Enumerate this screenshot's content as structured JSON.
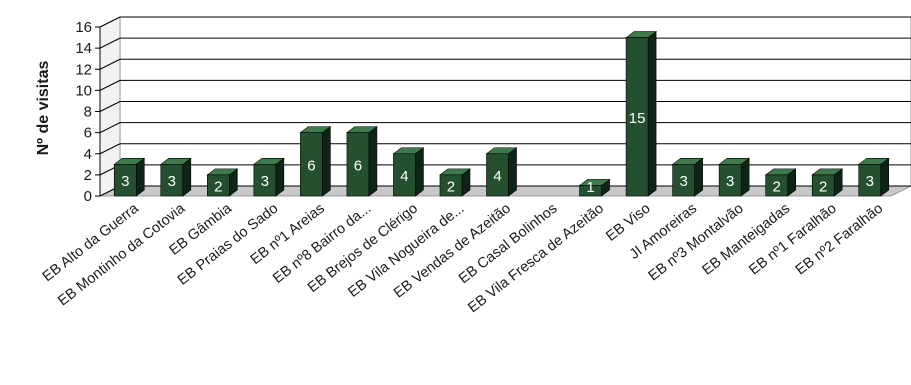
{
  "chart_data": {
    "type": "bar",
    "ylabel": "Nº de visitas",
    "ylim": [
      0,
      16
    ],
    "ytick_step": 2,
    "grid": true,
    "bar_color": "#1c3d27",
    "bar_face_color": "#25502f",
    "bar_side_color": "#0f2416",
    "bar_top_color": "#3f7a4d",
    "wall_color": "#ffffff",
    "floor_color": "#c8c8c8",
    "categories": [
      "EB Alto da Guerra",
      "EB Montinho da Cotovia",
      "EB Gâmbia",
      "EB Praias do Sado",
      "EB nº1 Areias",
      "EB nº8 Bairro da...",
      "EB Brejos de Clérigo",
      "EB Vila Nogueira de...",
      "EB Vendas de Azeitão",
      "EB Casal Bolinhos",
      "EB Vila Fresca de Azeitão",
      "EB Viso",
      "JI Amoreiras",
      "EB nº3 Montalvão",
      "EB Manteigadas",
      "EB nº1 Faralhão",
      "EB nº2 Faralhão"
    ],
    "values": [
      3,
      3,
      2,
      3,
      6,
      6,
      4,
      2,
      4,
      null,
      1,
      15,
      3,
      3,
      2,
      2,
      3
    ],
    "data_labels": [
      "3",
      "3",
      "2",
      "3",
      "6",
      "6",
      "4",
      "2",
      "4",
      "",
      "1",
      "15",
      "3",
      "3",
      "2",
      "2",
      "3"
    ]
  }
}
